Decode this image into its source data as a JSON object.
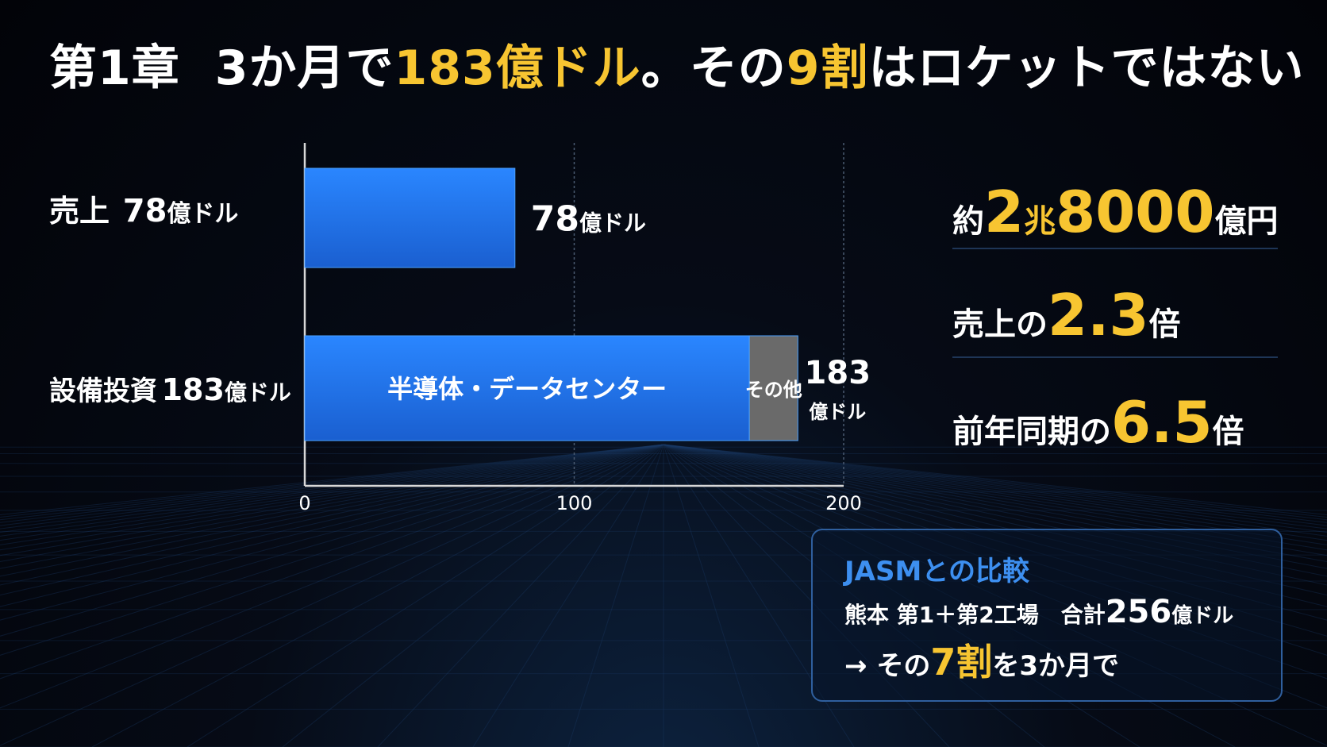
{
  "title": {
    "chapter": "第1章",
    "part1": "3か月で",
    "highlight1": "183億ドル",
    "part2": "。その",
    "highlight2": "9割",
    "part3": "はロケットではない"
  },
  "rows": {
    "sales": {
      "name": "売上",
      "value": "78",
      "unit": "億ドル"
    },
    "capex": {
      "name": "設備投資",
      "value": "183",
      "unit": "億ドル"
    }
  },
  "chart_data": {
    "type": "bar",
    "orientation": "horizontal",
    "stacked": true,
    "categories": [
      "売上",
      "設備投資"
    ],
    "series": [
      {
        "name": "売上",
        "values": [
          78,
          0
        ],
        "color": "#1f6fe6"
      },
      {
        "name": "半導体・データセンター",
        "values": [
          0,
          165
        ],
        "color": "#1f6fe6"
      },
      {
        "name": "その他",
        "values": [
          0,
          18
        ],
        "color": "#6a6a6a"
      }
    ],
    "totals": [
      78,
      183
    ],
    "xlim": [
      0,
      200
    ],
    "xticks": [
      "0",
      "100",
      "200"
    ],
    "grid": true,
    "segment_labels": [
      "半導体・データセンター",
      "その他"
    ],
    "value_labels": [
      {
        "num": "78",
        "unit": "億ドル"
      },
      {
        "num": "183",
        "unit": "億ドル"
      }
    ]
  },
  "stats": {
    "yen": {
      "pre": "約",
      "big1": "2",
      "mid1": "兆",
      "big2": "8000",
      "post": "億円"
    },
    "ratio_sales": {
      "pre": "売上の",
      "big": "2.3",
      "post": "倍"
    },
    "ratio_yoy": {
      "pre": "前年同期の",
      "big": "6.5",
      "post": "倍"
    }
  },
  "jasm": {
    "title": "JASMとの比較",
    "line1_pre": "熊本 第1＋第2工場　合計",
    "line1_num": "256",
    "line1_unit": "億ドル",
    "line2_pre": "→ その",
    "line2_highlight": "7割",
    "line2_post": "を3か月で"
  },
  "colors": {
    "accent_yellow": "#f7c531",
    "bar_blue": "#1f6fe6",
    "other_gray": "#6a6a6a",
    "jasm_blue": "#3d8ff0"
  }
}
